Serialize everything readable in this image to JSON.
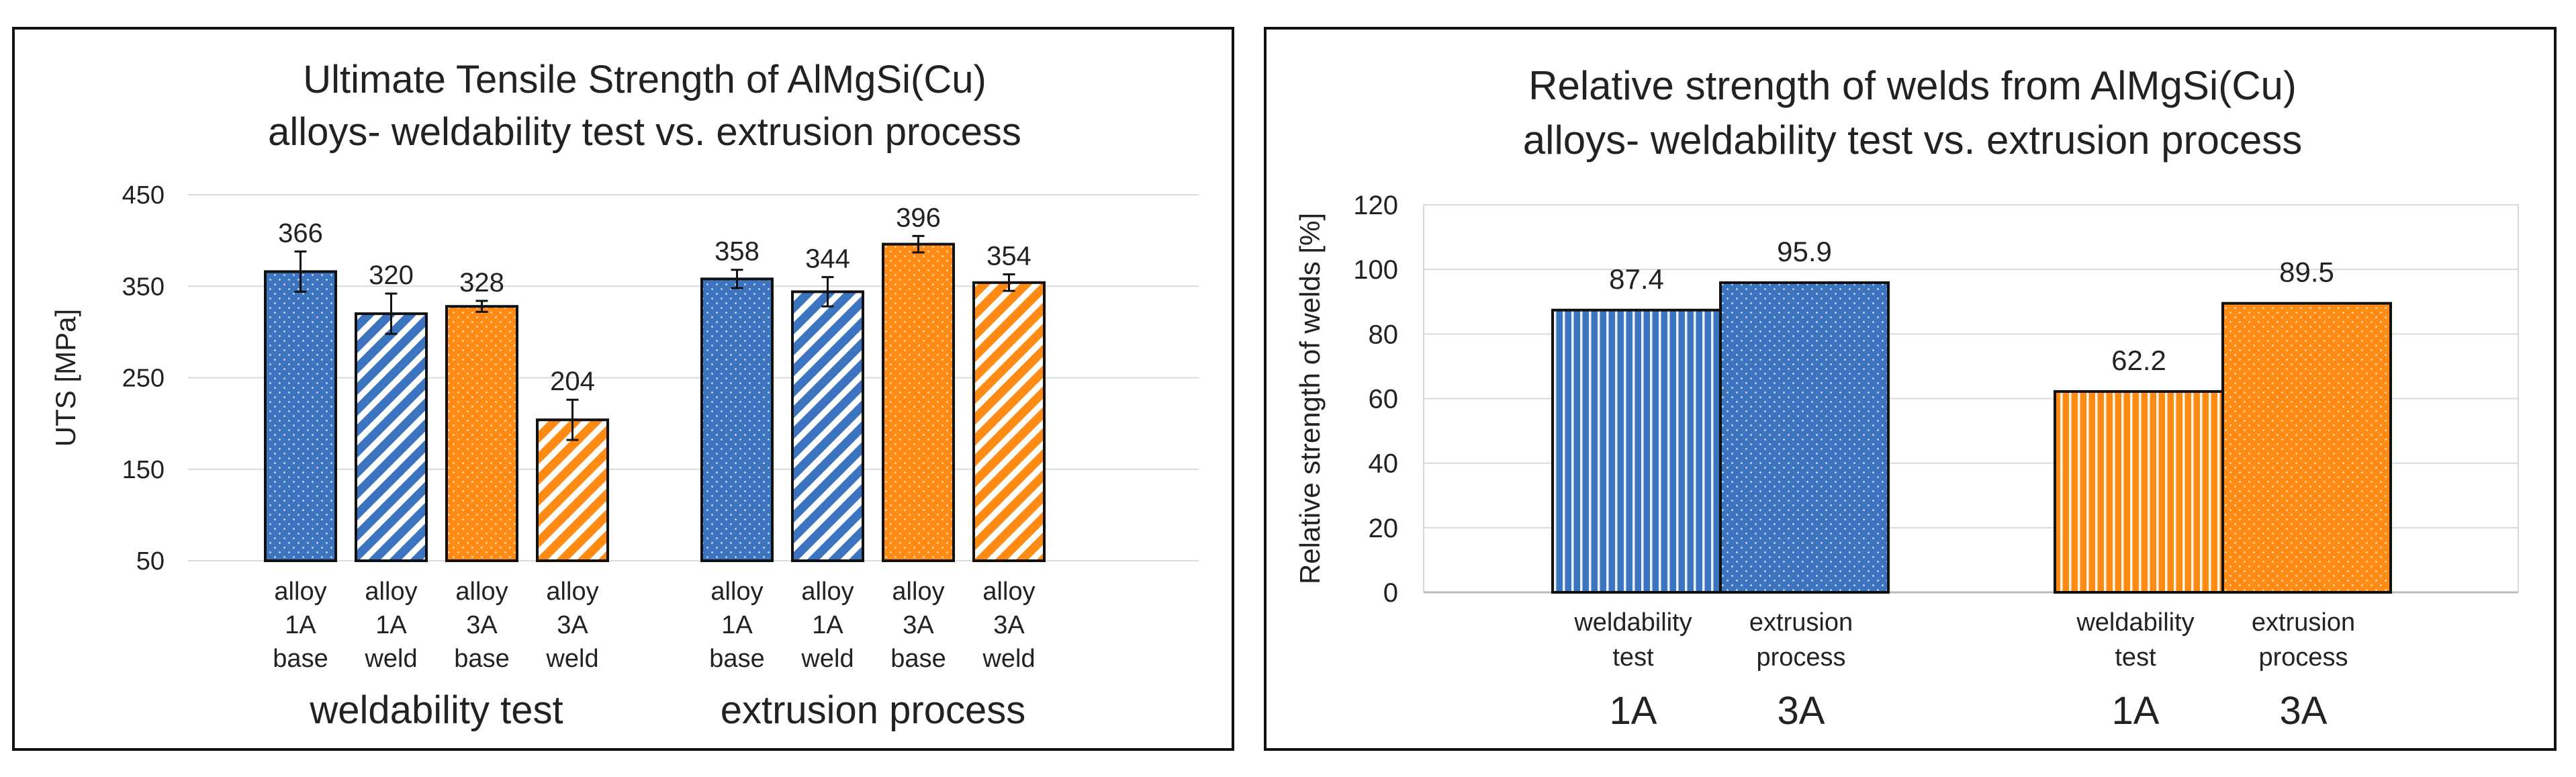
{
  "colors": {
    "blue": "#3d74c0",
    "orange": "#ff8a14",
    "grid": "#d9d9d9",
    "text": "#222222"
  },
  "chart_data": [
    {
      "type": "bar",
      "title": [
        "Ultimate Tensile Strength of AlMgSi(Cu)",
        "alloys- weldability test vs. extrusion process"
      ],
      "ylabel": "UTS [MPa]",
      "xlabel": "",
      "ylim": [
        50,
        450
      ],
      "yticks": [
        50,
        150,
        250,
        350,
        450
      ],
      "grid": true,
      "groups": [
        {
          "name": "weldability test",
          "bars": [
            {
              "label": [
                "alloy",
                "1A",
                "base"
              ],
              "value": 366,
              "error": 22,
              "color": "blue",
              "pattern": "dots"
            },
            {
              "label": [
                "alloy",
                "1A",
                "weld"
              ],
              "value": 320,
              "error": 22,
              "color": "blue",
              "pattern": "hatch"
            },
            {
              "label": [
                "alloy",
                "3A",
                "base"
              ],
              "value": 328,
              "error": 6,
              "color": "orange",
              "pattern": "dots"
            },
            {
              "label": [
                "alloy",
                "3A",
                "weld"
              ],
              "value": 204,
              "error": 22,
              "color": "orange",
              "pattern": "hatch"
            }
          ]
        },
        {
          "name": "extrusion process",
          "bars": [
            {
              "label": [
                "alloy",
                "1A",
                "base"
              ],
              "value": 358,
              "error": 10,
              "color": "blue",
              "pattern": "dots"
            },
            {
              "label": [
                "alloy",
                "1A",
                "weld"
              ],
              "value": 344,
              "error": 16,
              "color": "blue",
              "pattern": "hatch"
            },
            {
              "label": [
                "alloy",
                "3A",
                "base"
              ],
              "value": 396,
              "error": 9,
              "color": "orange",
              "pattern": "dots"
            },
            {
              "label": [
                "alloy",
                "3A",
                "weld"
              ],
              "value": 354,
              "error": 9,
              "color": "orange",
              "pattern": "hatch"
            }
          ]
        }
      ]
    },
    {
      "type": "bar",
      "title": [
        "Relative strength of welds from AlMgSi(Cu)",
        "alloys- weldability test vs. extrusion process"
      ],
      "ylabel": "Relative strength of welds [%]",
      "xlabel": "",
      "ylim": [
        0,
        120
      ],
      "yticks": [
        0,
        20,
        40,
        60,
        80,
        100,
        120
      ],
      "grid": true,
      "groups": [
        {
          "name": "",
          "bars": [
            {
              "label": [
                "weldability",
                "test"
              ],
              "value": 87.4,
              "value_label": "87.4",
              "alloy": "1A",
              "color": "blue",
              "pattern": "vlines"
            },
            {
              "label": [
                "extrusion",
                "process"
              ],
              "value": 95.9,
              "value_label": "95.9",
              "alloy": "3A",
              "color": "blue",
              "pattern": "dots"
            }
          ]
        },
        {
          "name": "",
          "bars": [
            {
              "label": [
                "weldability",
                "test"
              ],
              "value": 62.2,
              "value_label": "62.2",
              "alloy": "1A",
              "color": "orange",
              "pattern": "vlines"
            },
            {
              "label": [
                "extrusion",
                "process"
              ],
              "value": 89.5,
              "value_label": "89.5",
              "alloy": "3A",
              "color": "orange",
              "pattern": "dots"
            }
          ]
        }
      ]
    }
  ]
}
